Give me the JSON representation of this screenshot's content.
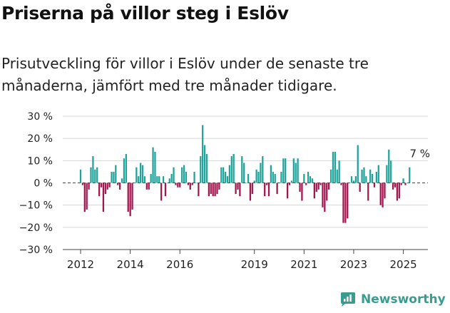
{
  "header": {
    "title": "Priserna på villor steg i Eslöv",
    "subtitle": "Prisutveckling för villor i Eslöv under de senaste tre månaderna, jämfört med tre månader tidigare."
  },
  "brand": {
    "name": "Newsworthy",
    "icon": "newsworthy-logo-icon"
  },
  "colors": {
    "positive": "#1fa39a",
    "negative": "#a3154e",
    "axis": "#444444",
    "grid": "#d6d6d6",
    "text": "#222222"
  },
  "chart_data": {
    "type": "bar",
    "title": "Priserna på villor steg i Eslöv",
    "x_start": "2012-01",
    "x_end": "2025-12",
    "x_ticks": [
      "2012",
      "2014",
      "2016",
      "2019",
      "2021",
      "2023",
      "2025"
    ],
    "y_ticks": [
      "30 %",
      "20 %",
      "10 %",
      "0 %",
      "−10 %",
      "−20 %",
      "−30 %"
    ],
    "ylim": [
      -30,
      30
    ],
    "y_unit": "%",
    "grid": "horizontal",
    "annotation": {
      "text": "7 %",
      "x": "2025-09",
      "y": 7
    },
    "series": [
      {
        "values": [
          6,
          -1,
          -13,
          -12,
          -3,
          7,
          12,
          6,
          7,
          -6,
          -2,
          -13,
          -5,
          -3,
          -2,
          5,
          5,
          8,
          -1,
          -3,
          2,
          11,
          13,
          -13,
          -15,
          -12,
          0,
          7,
          3,
          9,
          8,
          3,
          -3,
          -3,
          4,
          16,
          14,
          3,
          3,
          -8,
          3,
          -6,
          0,
          2,
          4,
          7,
          -1,
          -2,
          -2,
          7,
          8,
          5,
          -1,
          -3,
          -1,
          5,
          0,
          -6,
          12,
          26,
          17,
          13,
          -6,
          -5,
          -6,
          -6,
          -5,
          -3,
          7,
          7,
          5,
          3,
          8,
          12,
          13,
          -5,
          -3,
          -6,
          12,
          9,
          0,
          4,
          -8,
          -5,
          1,
          6,
          5,
          9,
          12,
          -6,
          -1,
          -6,
          8,
          5,
          4,
          -5,
          0,
          5,
          11,
          11,
          -7,
          -1,
          1,
          11,
          9,
          11,
          -4,
          -8,
          4,
          -1,
          5,
          3,
          2,
          -7,
          -4,
          -3,
          -1,
          -11,
          -13,
          -8,
          -3,
          6,
          14,
          14,
          6,
          10,
          -1,
          -18,
          -18,
          -16,
          0,
          3,
          1,
          3,
          17,
          -4,
          6,
          7,
          3,
          -8,
          6,
          4,
          -2,
          5,
          8,
          -10,
          -11,
          -7,
          8,
          15,
          10,
          -3,
          -2,
          -8,
          -7,
          -1,
          2,
          -1,
          0,
          7
        ]
      }
    ]
  }
}
